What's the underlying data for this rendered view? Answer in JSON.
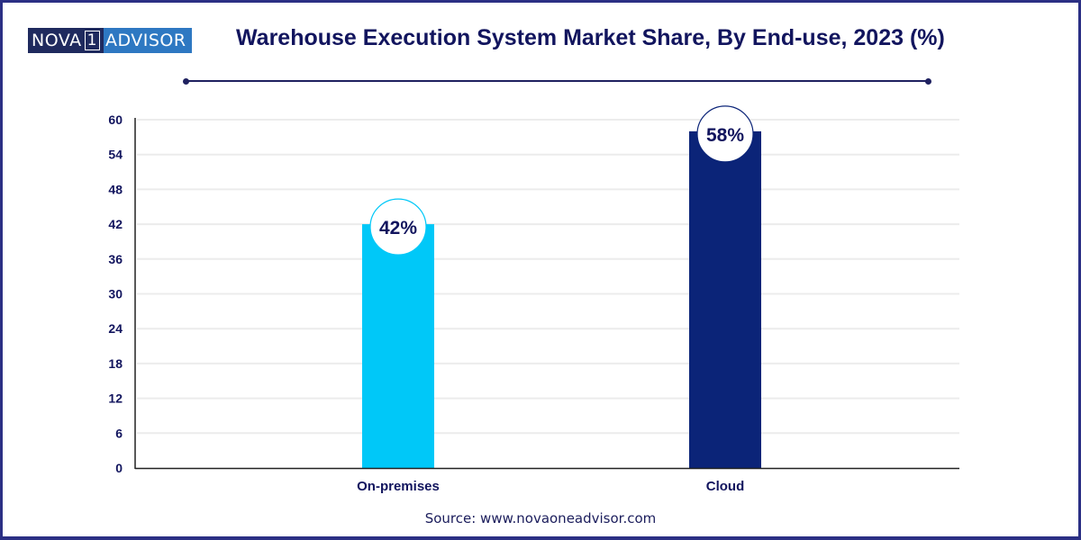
{
  "brand": {
    "logo_left": "NOVA",
    "logo_mid": "1",
    "logo_right": "ADVISOR"
  },
  "colors": {
    "title": "#12155e",
    "frame": "#2b2f84",
    "bar_on_premises": "#00c8f8",
    "bar_cloud": "#0b2478",
    "axis_text": "#12155e",
    "grid": "#ececec"
  },
  "source": "Source: www.novaoneadvisor.com",
  "chart_data": {
    "type": "bar",
    "title": "Warehouse Execution System Market Share, By End-use, 2023 (%)",
    "xlabel": "",
    "ylabel": "",
    "categories": [
      "On-premises",
      "Cloud"
    ],
    "values": [
      42,
      58
    ],
    "data_labels": [
      "42%",
      "58%"
    ],
    "bar_colors": [
      "#00c8f8",
      "#0b2478"
    ],
    "ylim": [
      0,
      60
    ],
    "yticks": [
      0,
      6,
      12,
      18,
      24,
      30,
      36,
      42,
      48,
      54,
      60
    ],
    "grid": true,
    "legend": "none"
  }
}
